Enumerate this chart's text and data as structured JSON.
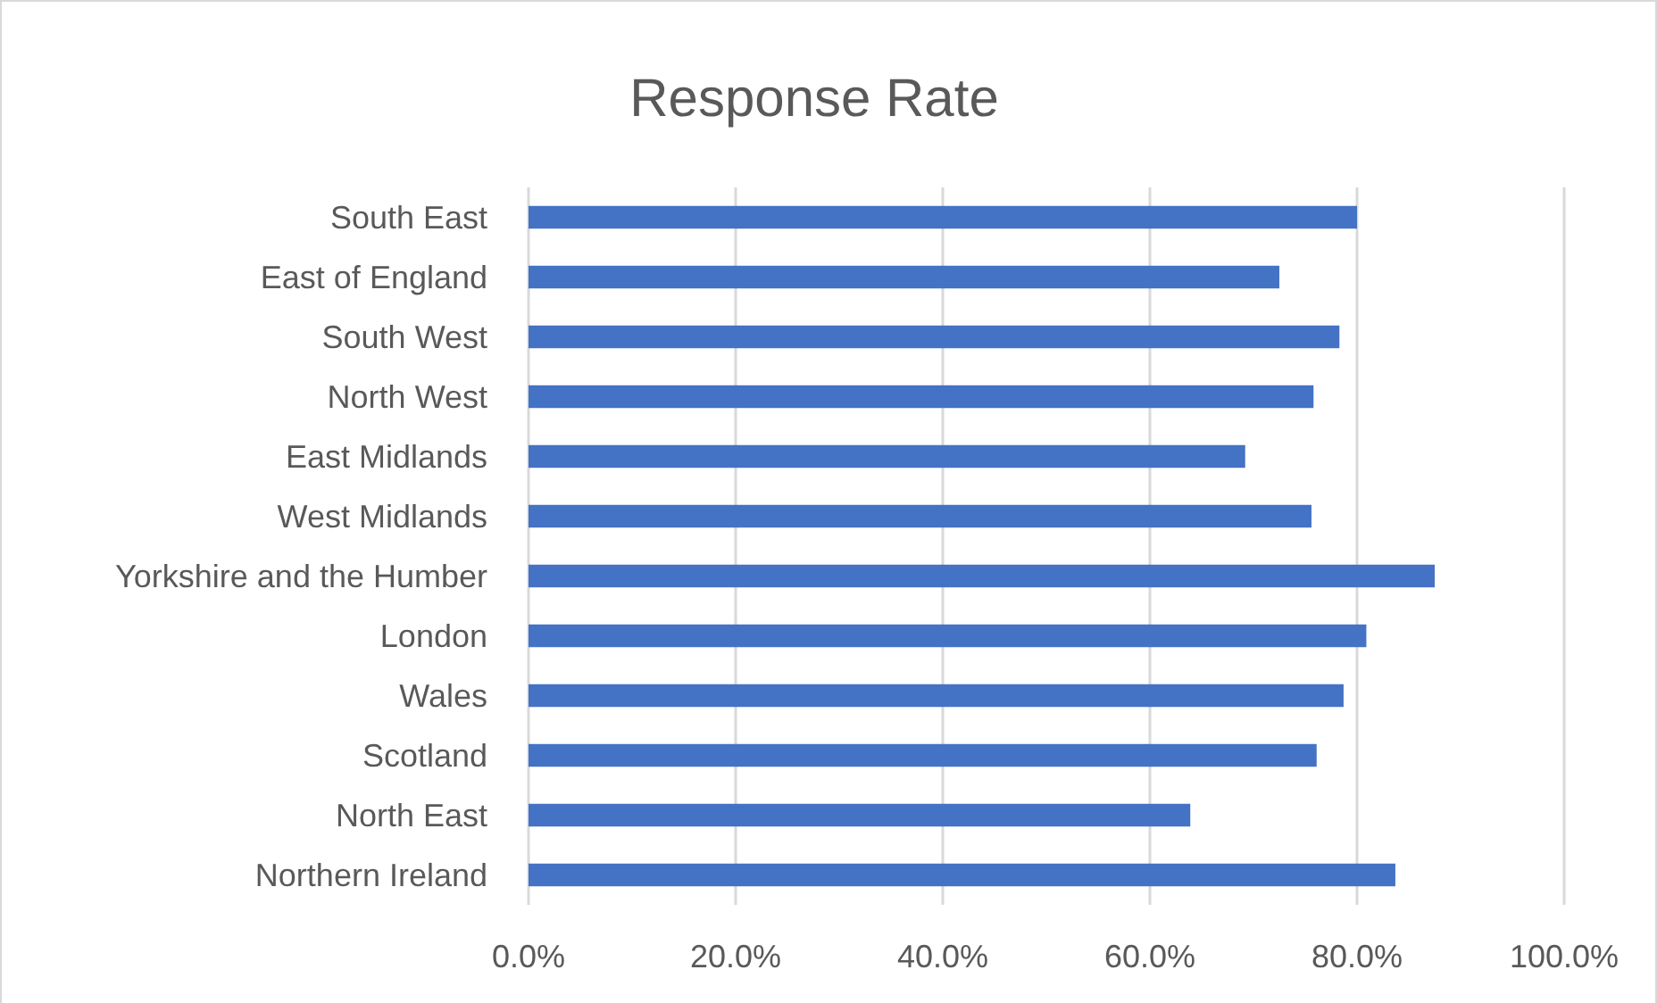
{
  "chart_data": {
    "type": "bar",
    "orientation": "horizontal",
    "title": "Response Rate",
    "categories": [
      "South East",
      "East of England",
      "South West",
      "North West",
      "East Midlands",
      "West Midlands",
      "Yorkshire and the Humber",
      "London",
      "Wales",
      "Scotland",
      "North East",
      "Northern Ireland"
    ],
    "values": [
      80.0,
      72.5,
      78.3,
      75.8,
      69.2,
      75.6,
      87.5,
      80.9,
      78.7,
      76.1,
      63.9,
      83.7
    ],
    "color": "#4472c4",
    "xlim": [
      0,
      100
    ],
    "xticks": [
      {
        "value": 0,
        "label": "0.0%"
      },
      {
        "value": 20,
        "label": "20.0%"
      },
      {
        "value": 40,
        "label": "40.0%"
      },
      {
        "value": 60,
        "label": "60.0%"
      },
      {
        "value": 80,
        "label": "80.0%"
      },
      {
        "value": 100,
        "label": "100.0%"
      }
    ],
    "grid": "x"
  }
}
